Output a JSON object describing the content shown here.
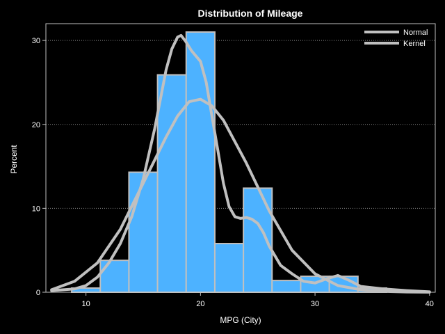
{
  "chart_data": {
    "type": "histogram",
    "title": "Distribution of Mileage",
    "xlabel": "MPG (City)",
    "ylabel": "Percent",
    "xlim": [
      6.5,
      40.5
    ],
    "ylim": [
      0,
      32
    ],
    "xticks": [
      10,
      20,
      30,
      40
    ],
    "yticks": [
      0,
      10,
      20,
      30
    ],
    "bin_width": 2.5,
    "bins": [
      {
        "x0": 8.75,
        "x1": 11.25,
        "value": 0.5
      },
      {
        "x0": 11.25,
        "x1": 13.75,
        "value": 3.8
      },
      {
        "x0": 13.75,
        "x1": 16.25,
        "value": 14.3
      },
      {
        "x0": 16.25,
        "x1": 18.75,
        "value": 25.9
      },
      {
        "x0": 18.75,
        "x1": 21.25,
        "value": 31.0
      },
      {
        "x0": 21.25,
        "x1": 23.75,
        "value": 5.8
      },
      {
        "x0": 23.75,
        "x1": 26.25,
        "value": 12.4
      },
      {
        "x0": 26.25,
        "x1": 28.75,
        "value": 1.4
      },
      {
        "x0": 28.75,
        "x1": 31.25,
        "value": 1.9
      },
      {
        "x0": 31.25,
        "x1": 33.75,
        "value": 1.9
      },
      {
        "x0": 33.75,
        "x1": 36.25,
        "value": 0.5
      }
    ],
    "series": [
      {
        "name": "Normal",
        "kind": "density-curve",
        "x": [
          7,
          9,
          11,
          13,
          15,
          17,
          18,
          19,
          20,
          21,
          22,
          24,
          26,
          28,
          30,
          32,
          34,
          36,
          38,
          40
        ],
        "y": [
          0.3,
          1.3,
          3.5,
          7.5,
          13,
          18.5,
          21,
          22.7,
          23,
          22.2,
          20.5,
          15.4,
          9.7,
          5,
          2.2,
          0.8,
          0.3,
          0.1,
          0.03,
          0.01
        ]
      },
      {
        "name": "Kernel",
        "kind": "density-curve",
        "x": [
          7,
          9,
          10,
          11,
          12,
          13,
          14,
          15,
          16,
          16.5,
          17,
          17.5,
          18,
          18.3,
          18.7,
          19.2,
          20,
          20.5,
          21,
          21.5,
          22,
          22.5,
          23,
          23.5,
          24,
          24.5,
          25,
          25.5,
          26,
          27,
          28,
          29,
          30,
          31,
          32,
          33,
          34,
          36,
          38,
          40
        ],
        "y": [
          0.2,
          0.4,
          0.8,
          1.8,
          3.5,
          5.8,
          9,
          13.5,
          19.5,
          23,
          26.5,
          29,
          30.4,
          30.6,
          29.9,
          28.8,
          27.5,
          25,
          21,
          17,
          13,
          10.2,
          9,
          8.8,
          8.9,
          8.7,
          8.2,
          7.1,
          5.5,
          3.2,
          2.2,
          1.3,
          1.1,
          1.6,
          2.0,
          1.4,
          0.7,
          0.4,
          0.2,
          0.05
        ]
      }
    ],
    "grid": "horizontal-dotted",
    "legend_position": "top-right",
    "colors": {
      "background": "#000000",
      "bar_fill": "#4DB2FF",
      "bar_stroke": "#C0C0C0",
      "curve": "#C0C0C0",
      "axis": "#C0C0C0",
      "grid": "#888888",
      "text": "#FFFFFF"
    }
  }
}
